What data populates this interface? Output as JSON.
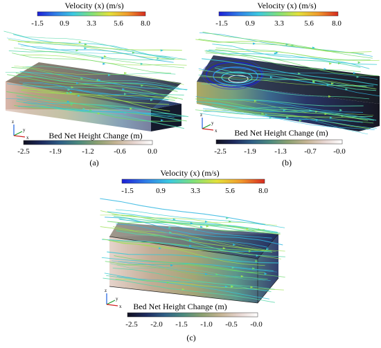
{
  "colormap": {
    "velocity_stops": [
      "#1c1fd6",
      "#2f7de6",
      "#3bc9e0",
      "#7fe07a",
      "#e3e13a",
      "#f19a2c",
      "#d62a1f"
    ],
    "bed_stops": [
      "#101020",
      "#1d2a5e",
      "#2f5f86",
      "#4b8a7e",
      "#8aa070",
      "#c4b392",
      "#e6d4cf",
      "#ffffff"
    ],
    "streamline_colors": [
      "#36c9d6",
      "#52d6a8",
      "#6ad86a",
      "#9be04f",
      "#2fb6e0"
    ]
  },
  "panels": [
    {
      "id": "a",
      "caption": "(a)",
      "velocity_title": "Velocity (x) (m/s)",
      "velocity_ticks": [
        "-1.5",
        "0.9",
        "3.3",
        "5.6",
        "8.0"
      ],
      "bed_title": "Bed Net Height Change (m)",
      "bed_ticks": [
        "-2.5",
        "-1.9",
        "-1.2",
        "-0.6",
        "0.0"
      ],
      "axes": {
        "z": "z",
        "y": "y",
        "x": "x"
      }
    },
    {
      "id": "b",
      "caption": "(b)",
      "velocity_title": "Velocity (x) (m/s)",
      "velocity_ticks": [
        "-1.5",
        "0.9",
        "3.3",
        "5.6",
        "8.0"
      ],
      "bed_title": "Bed Net Height Change (m)",
      "bed_ticks": [
        "-2.5",
        "-1.9",
        "-1.3",
        "-0.7",
        "-0.0"
      ],
      "axes": {
        "z": "z",
        "y": "y",
        "x": "x"
      }
    },
    {
      "id": "c",
      "caption": "(c)",
      "velocity_title": "Velocity (x) (m/s)",
      "velocity_ticks": [
        "-1.5",
        "0.9",
        "3.3",
        "5.6",
        "8.0"
      ],
      "bed_title": "Bed Net Height Change (m)",
      "bed_ticks": [
        "-2.5",
        "-2.0",
        "-1.5",
        "-1.0",
        "-0.5",
        "-0.0"
      ],
      "axes": {
        "z": "z",
        "y": "y",
        "x": "x"
      }
    }
  ]
}
